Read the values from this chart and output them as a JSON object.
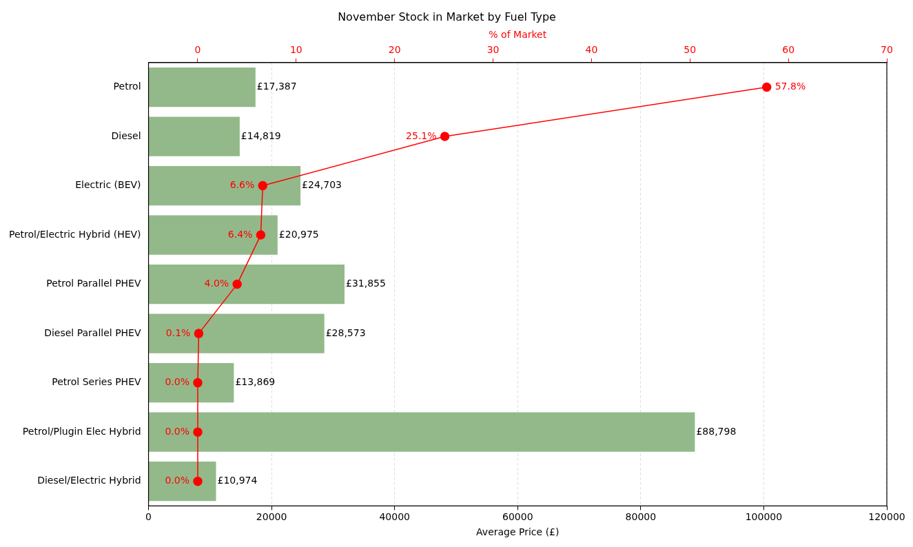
{
  "chart_data": {
    "type": "bar",
    "orientation": "horizontal",
    "title": "November Stock in Market by Fuel Type",
    "xlabel": "Average Price (£)",
    "x2label": "% of Market",
    "categories": [
      "Petrol",
      "Diesel",
      "Electric (BEV)",
      "Petrol/Electric Hybrid (HEV)",
      "Petrol Parallel PHEV",
      "Diesel Parallel PHEV",
      "Petrol Series PHEV",
      "Petrol/Plugin Elec Hybrid",
      "Diesel/Electric Hybrid"
    ],
    "xlim": [
      0,
      120000
    ],
    "xticks": [
      0,
      20000,
      40000,
      60000,
      80000,
      100000,
      120000
    ],
    "x2lim": [
      -5,
      70
    ],
    "x2ticks": [
      0,
      10,
      20,
      30,
      40,
      50,
      60,
      70
    ],
    "grid": "x",
    "marker": "circle",
    "series": [
      {
        "color": "#93b98a",
        "values": [
          17387,
          14819,
          24703,
          20975,
          31855,
          28573,
          13869,
          88798,
          10974
        ],
        "value_labels": [
          "£17,387",
          "£14,819",
          "£24,703",
          "£20,975",
          "£31,855",
          "£28,573",
          "£13,869",
          "£88,798",
          "£10,974"
        ]
      },
      {
        "type": "line",
        "axis": "x2",
        "color": "#ff0000",
        "values": [
          57.8,
          25.1,
          6.6,
          6.4,
          4.0,
          0.1,
          0.0,
          0.0,
          0.0
        ],
        "value_labels": [
          "57.8%",
          "25.1%",
          "6.6%",
          "6.4%",
          "4.0%",
          "0.1%",
          "0.0%",
          "0.0%",
          "0.0%"
        ]
      }
    ]
  }
}
